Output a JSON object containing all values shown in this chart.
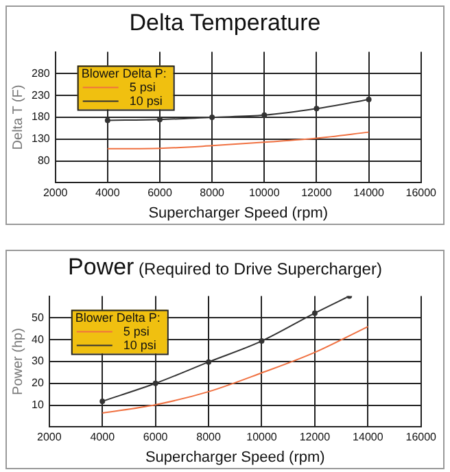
{
  "chart_data": [
    {
      "type": "line",
      "title": "Delta Temperature",
      "xlabel": "Supercharger Speed (rpm)",
      "ylabel": "Delta T (F)",
      "legend_title": "Blower Delta P:",
      "xlim": [
        2000,
        16000
      ],
      "xticks": [
        2000,
        4000,
        6000,
        8000,
        10000,
        12000,
        14000,
        16000
      ],
      "ylim": [
        30,
        330
      ],
      "yticks": [
        80,
        130,
        180,
        230,
        280
      ],
      "grid": true,
      "legend": "top left",
      "series": [
        {
          "name": "5 psi",
          "color": "#f07040",
          "marker": "none",
          "x": [
            4000,
            6000,
            8000,
            10000,
            12000,
            14000
          ],
          "values": [
            108,
            109,
            115,
            123,
            132,
            146
          ]
        },
        {
          "name": "10 psi",
          "color": "#333333",
          "marker": "circle",
          "x": [
            4000,
            6000,
            8000,
            10000,
            12000,
            14000
          ],
          "values": [
            173,
            175,
            180,
            185,
            200,
            221
          ]
        }
      ]
    },
    {
      "type": "line",
      "title": "Power",
      "subtitle": "(Required to Drive Supercharger)",
      "xlabel": "Supercharger Speed (rpm)",
      "ylabel": "Power (hp)",
      "legend_title": "Blower Delta P:",
      "xlim": [
        2000,
        16000
      ],
      "xticks": [
        2000,
        4000,
        6000,
        8000,
        10000,
        12000,
        14000,
        16000
      ],
      "ylim": [
        0,
        60
      ],
      "yticks": [
        10,
        20,
        30,
        40,
        50
      ],
      "grid": true,
      "legend": "top left",
      "series": [
        {
          "name": "5 psi",
          "color": "#f07040",
          "marker": "none",
          "x": [
            4000,
            6000,
            8000,
            10000,
            12000,
            14000
          ],
          "values": [
            6.4,
            10.2,
            16.2,
            24.8,
            34.2,
            46
          ]
        },
        {
          "name": "10 psi",
          "color": "#333333",
          "marker": "circle",
          "x": [
            4000,
            6000,
            8000,
            10000,
            12000,
            13300
          ],
          "values": [
            11.8,
            20,
            29.8,
            39.4,
            52.2,
            60
          ]
        }
      ]
    }
  ]
}
